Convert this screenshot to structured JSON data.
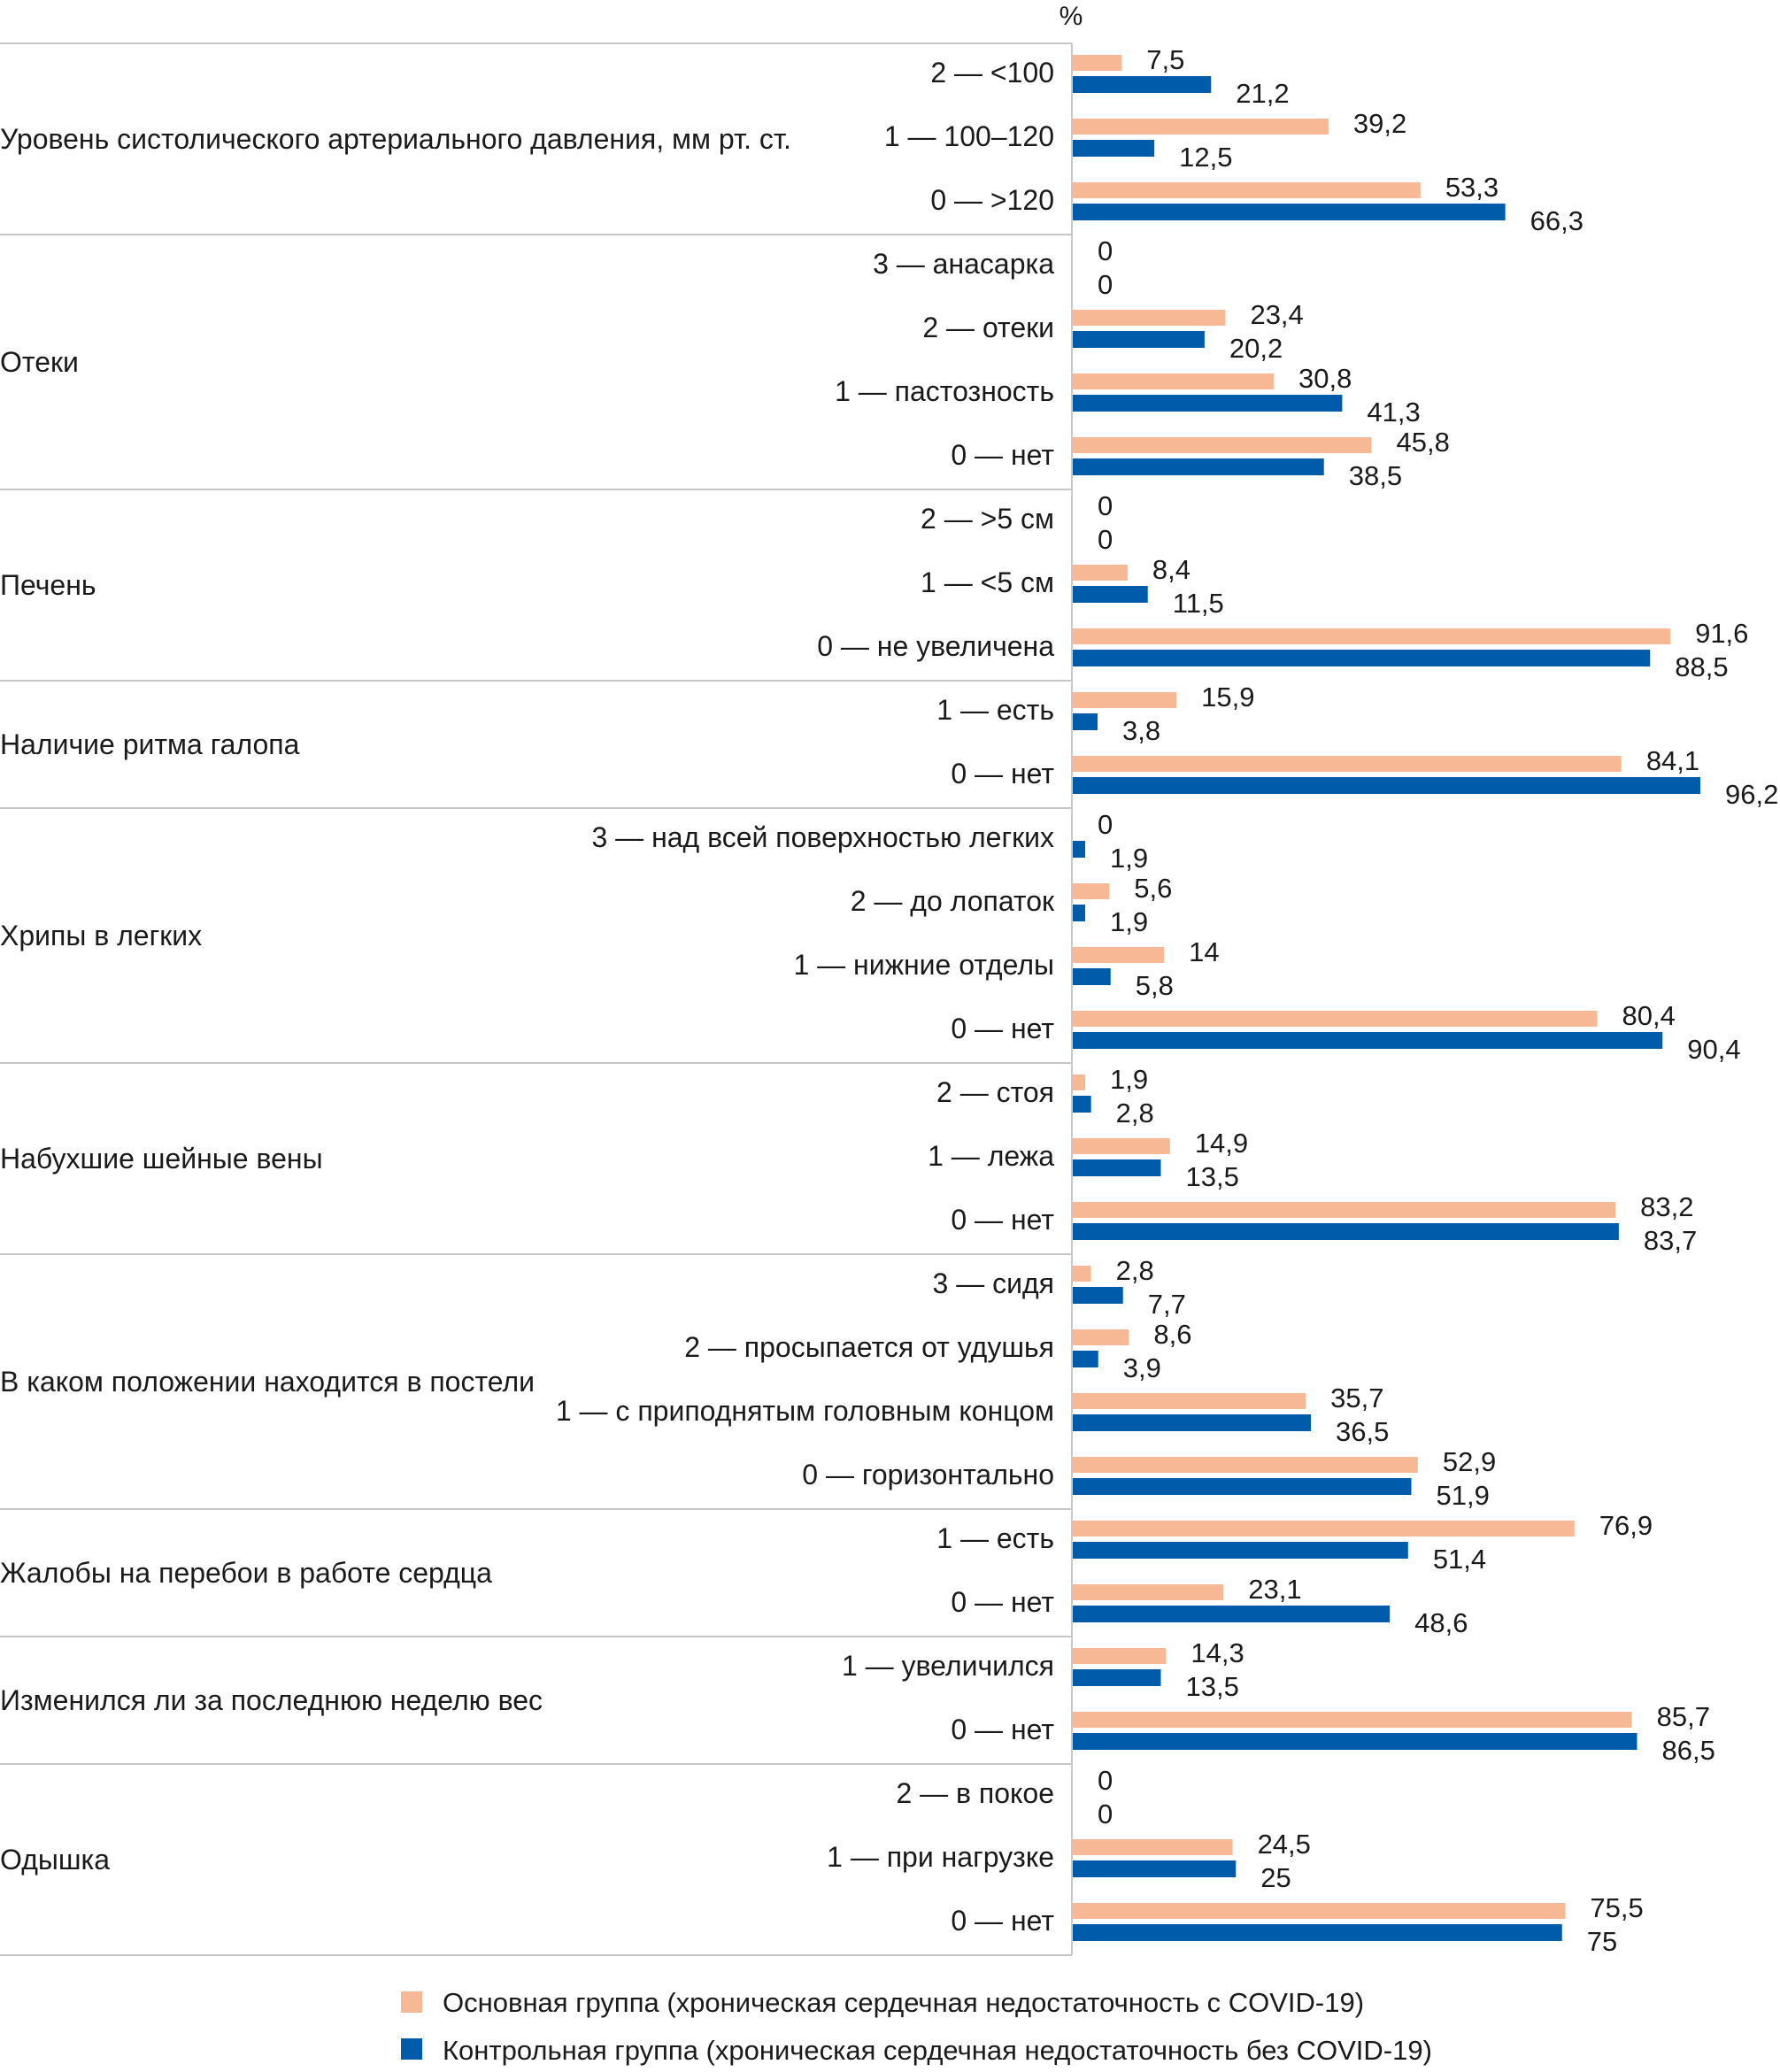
{
  "chart_data": {
    "type": "bar",
    "orientation": "horizontal",
    "unit_label": "%",
    "xlim": [
      0,
      100
    ],
    "grid": false,
    "legend_position": "bottom",
    "colors": {
      "main": "#f7b896",
      "control": "#005bab",
      "separator": "#c8c8c8"
    },
    "series": [
      {
        "key": "main",
        "name": "Основная группа (хроническая сердечная недостаточность с COVID-19)"
      },
      {
        "key": "control",
        "name": "Контрольная группа (хроническая сердечная недостаточность без COVID-19)"
      }
    ],
    "groups": [
      {
        "title": "Уровень систолического артериального давления, мм рт. ст.",
        "items": [
          {
            "label": "2 — <100",
            "main": 7.5,
            "control": 21.2,
            "main_text": "7,5",
            "control_text": "21,2"
          },
          {
            "label": "1 — 100–120",
            "main": 39.2,
            "control": 12.5,
            "main_text": "39,2",
            "control_text": "12,5"
          },
          {
            "label": "0 — >120",
            "main": 53.3,
            "control": 66.3,
            "main_text": "53,3",
            "control_text": "66,3"
          }
        ]
      },
      {
        "title": "Отеки",
        "items": [
          {
            "label": "3 — анасарка",
            "main": 0,
            "control": 0,
            "main_text": "0",
            "control_text": "0"
          },
          {
            "label": "2 — отеки",
            "main": 23.4,
            "control": 20.2,
            "main_text": "23,4",
            "control_text": "20,2"
          },
          {
            "label": "1 — пастозность",
            "main": 30.8,
            "control": 41.3,
            "main_text": "30,8",
            "control_text": "41,3"
          },
          {
            "label": "0 — нет",
            "main": 45.8,
            "control": 38.5,
            "main_text": "45,8",
            "control_text": "38,5"
          }
        ]
      },
      {
        "title": "Печень",
        "items": [
          {
            "label": "2 — >5 см",
            "main": 0,
            "control": 0,
            "main_text": "0",
            "control_text": "0"
          },
          {
            "label": "1 — <5 см",
            "main": 8.4,
            "control": 11.5,
            "main_text": "8,4",
            "control_text": "11,5"
          },
          {
            "label": "0 — не увеличена",
            "main": 91.6,
            "control": 88.5,
            "main_text": "91,6",
            "control_text": "88,5"
          }
        ]
      },
      {
        "title": "Наличие ритма галопа",
        "items": [
          {
            "label": "1 — есть",
            "main": 15.9,
            "control": 3.8,
            "main_text": "15,9",
            "control_text": "3,8"
          },
          {
            "label": "0 — нет",
            "main": 84.1,
            "control": 96.2,
            "main_text": "84,1",
            "control_text": "96,2"
          }
        ]
      },
      {
        "title": "Хрипы в легких",
        "items": [
          {
            "label": "3 — над всей поверхностью легких",
            "main": 0,
            "control": 1.9,
            "main_text": "0",
            "control_text": "1,9"
          },
          {
            "label": "2 — до лопаток",
            "main": 5.6,
            "control": 1.9,
            "main_text": "5,6",
            "control_text": "1,9"
          },
          {
            "label": "1 — нижние отделы",
            "main": 14,
            "control": 5.8,
            "main_text": "14",
            "control_text": "5,8"
          },
          {
            "label": "0 — нет",
            "main": 80.4,
            "control": 90.4,
            "main_text": "80,4",
            "control_text": "90,4"
          }
        ]
      },
      {
        "title": "Набухшие шейные вены",
        "items": [
          {
            "label": "2 — стоя",
            "main": 1.9,
            "control": 2.8,
            "main_text": "1,9",
            "control_text": "2,8"
          },
          {
            "label": "1 — лежа",
            "main": 14.9,
            "control": 13.5,
            "main_text": "14,9",
            "control_text": "13,5"
          },
          {
            "label": "0 — нет",
            "main": 83.2,
            "control": 83.7,
            "main_text": "83,2",
            "control_text": "83,7"
          }
        ]
      },
      {
        "title": "В каком положении находится в постели",
        "items": [
          {
            "label": "3 — сидя",
            "main": 2.8,
            "control": 7.7,
            "main_text": "2,8",
            "control_text": "7,7"
          },
          {
            "label": "2 — просыпается от удушья",
            "main": 8.6,
            "control": 3.9,
            "main_text": "8,6",
            "control_text": "3,9"
          },
          {
            "label": "1 — с приподнятым головным концом",
            "main": 35.7,
            "control": 36.5,
            "main_text": "35,7",
            "control_text": "36,5"
          },
          {
            "label": "0 — горизонтально",
            "main": 52.9,
            "control": 51.9,
            "main_text": "52,9",
            "control_text": "51,9"
          }
        ]
      },
      {
        "title": "Жалобы на перебои в работе сердца",
        "items": [
          {
            "label": "1 — есть",
            "main": 76.9,
            "control": 51.4,
            "main_text": "76,9",
            "control_text": "51,4"
          },
          {
            "label": "0 — нет",
            "main": 23.1,
            "control": 48.6,
            "main_text": "23,1",
            "control_text": "48,6"
          }
        ]
      },
      {
        "title": "Изменился ли за последнюю неделю вес",
        "items": [
          {
            "label": "1 — увеличился",
            "main": 14.3,
            "control": 13.5,
            "main_text": "14,3",
            "control_text": "13,5"
          },
          {
            "label": "0 — нет",
            "main": 85.7,
            "control": 86.5,
            "main_text": "85,7",
            "control_text": "86,5"
          }
        ]
      },
      {
        "title": "Одышка",
        "items": [
          {
            "label": "2 — в покое",
            "main": 0,
            "control": 0,
            "main_text": "0",
            "control_text": "0"
          },
          {
            "label": "1 — при нагрузке",
            "main": 24.5,
            "control": 25,
            "main_text": "24,5",
            "control_text": "25"
          },
          {
            "label": "0 — нет",
            "main": 75.5,
            "control": 75,
            "main_text": "75,5",
            "control_text": "75"
          }
        ]
      }
    ]
  }
}
